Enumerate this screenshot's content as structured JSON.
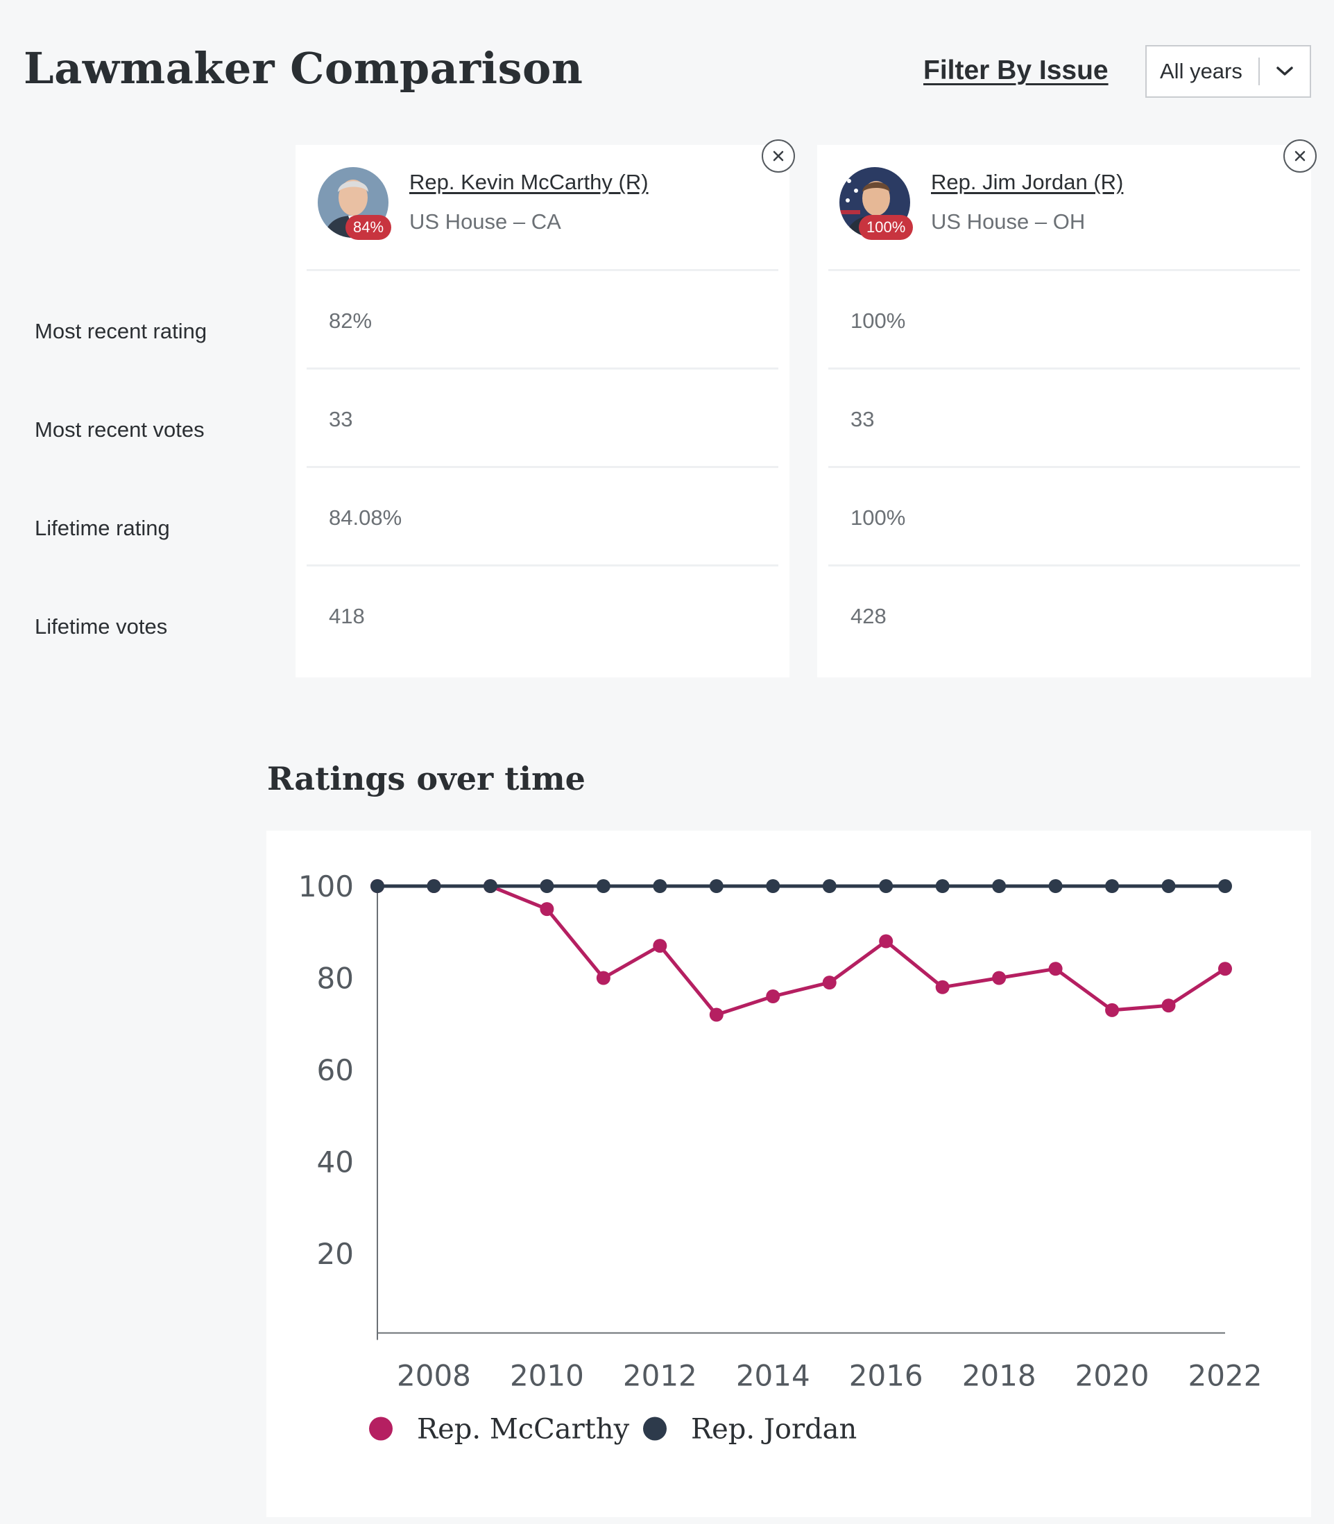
{
  "page": {
    "title": "Lawmaker Comparison"
  },
  "header": {
    "filter_label": "Filter By Issue",
    "year_select": {
      "selected": "All years"
    }
  },
  "rows": {
    "most_recent_rating": "Most recent rating",
    "most_recent_votes": "Most recent votes",
    "lifetime_rating": "Lifetime rating",
    "lifetime_votes": "Lifetime votes"
  },
  "lawmakers": [
    {
      "name": "Rep. Kevin McCarthy (R)",
      "district": "US House – CA",
      "badge": "84%",
      "most_recent_rating": "82%",
      "most_recent_votes": "33",
      "lifetime_rating": "84.08%",
      "lifetime_votes": "418"
    },
    {
      "name": "Rep. Jim Jordan (R)",
      "district": "US House – OH",
      "badge": "100%",
      "most_recent_rating": "100%",
      "most_recent_votes": "33",
      "lifetime_rating": "100%",
      "lifetime_votes": "428"
    }
  ],
  "icons": {
    "close": "close-icon",
    "dropdown": "chevron-down-icon",
    "avatar": "portrait-photo"
  },
  "colors": {
    "badge": "#c8343f",
    "mccarthy": "#b51f61",
    "jordan": "#2d3a4b"
  },
  "chart_data": {
    "type": "line",
    "title": "Ratings over time",
    "x": [
      2007,
      2008,
      2009,
      2010,
      2011,
      2012,
      2013,
      2014,
      2015,
      2016,
      2017,
      2018,
      2019,
      2020,
      2021,
      2022
    ],
    "x_tick_labels": [
      "2008",
      "2010",
      "2012",
      "2014",
      "2016",
      "2018",
      "2020",
      "2022"
    ],
    "y_tick_labels": [
      "100",
      "80",
      "60",
      "40",
      "20"
    ],
    "ylim": [
      0,
      100
    ],
    "grid": false,
    "legend_position": "bottom-left",
    "series": [
      {
        "name": "Rep. McCarthy",
        "color": "#b51f61",
        "values": [
          100,
          100,
          100,
          95,
          80,
          87,
          72,
          76,
          79,
          88,
          78,
          80,
          82,
          73,
          74,
          82
        ]
      },
      {
        "name": "Rep. Jordan",
        "color": "#2d3a4b",
        "values": [
          100,
          100,
          100,
          100,
          100,
          100,
          100,
          100,
          100,
          100,
          100,
          100,
          100,
          100,
          100,
          100
        ]
      }
    ]
  }
}
